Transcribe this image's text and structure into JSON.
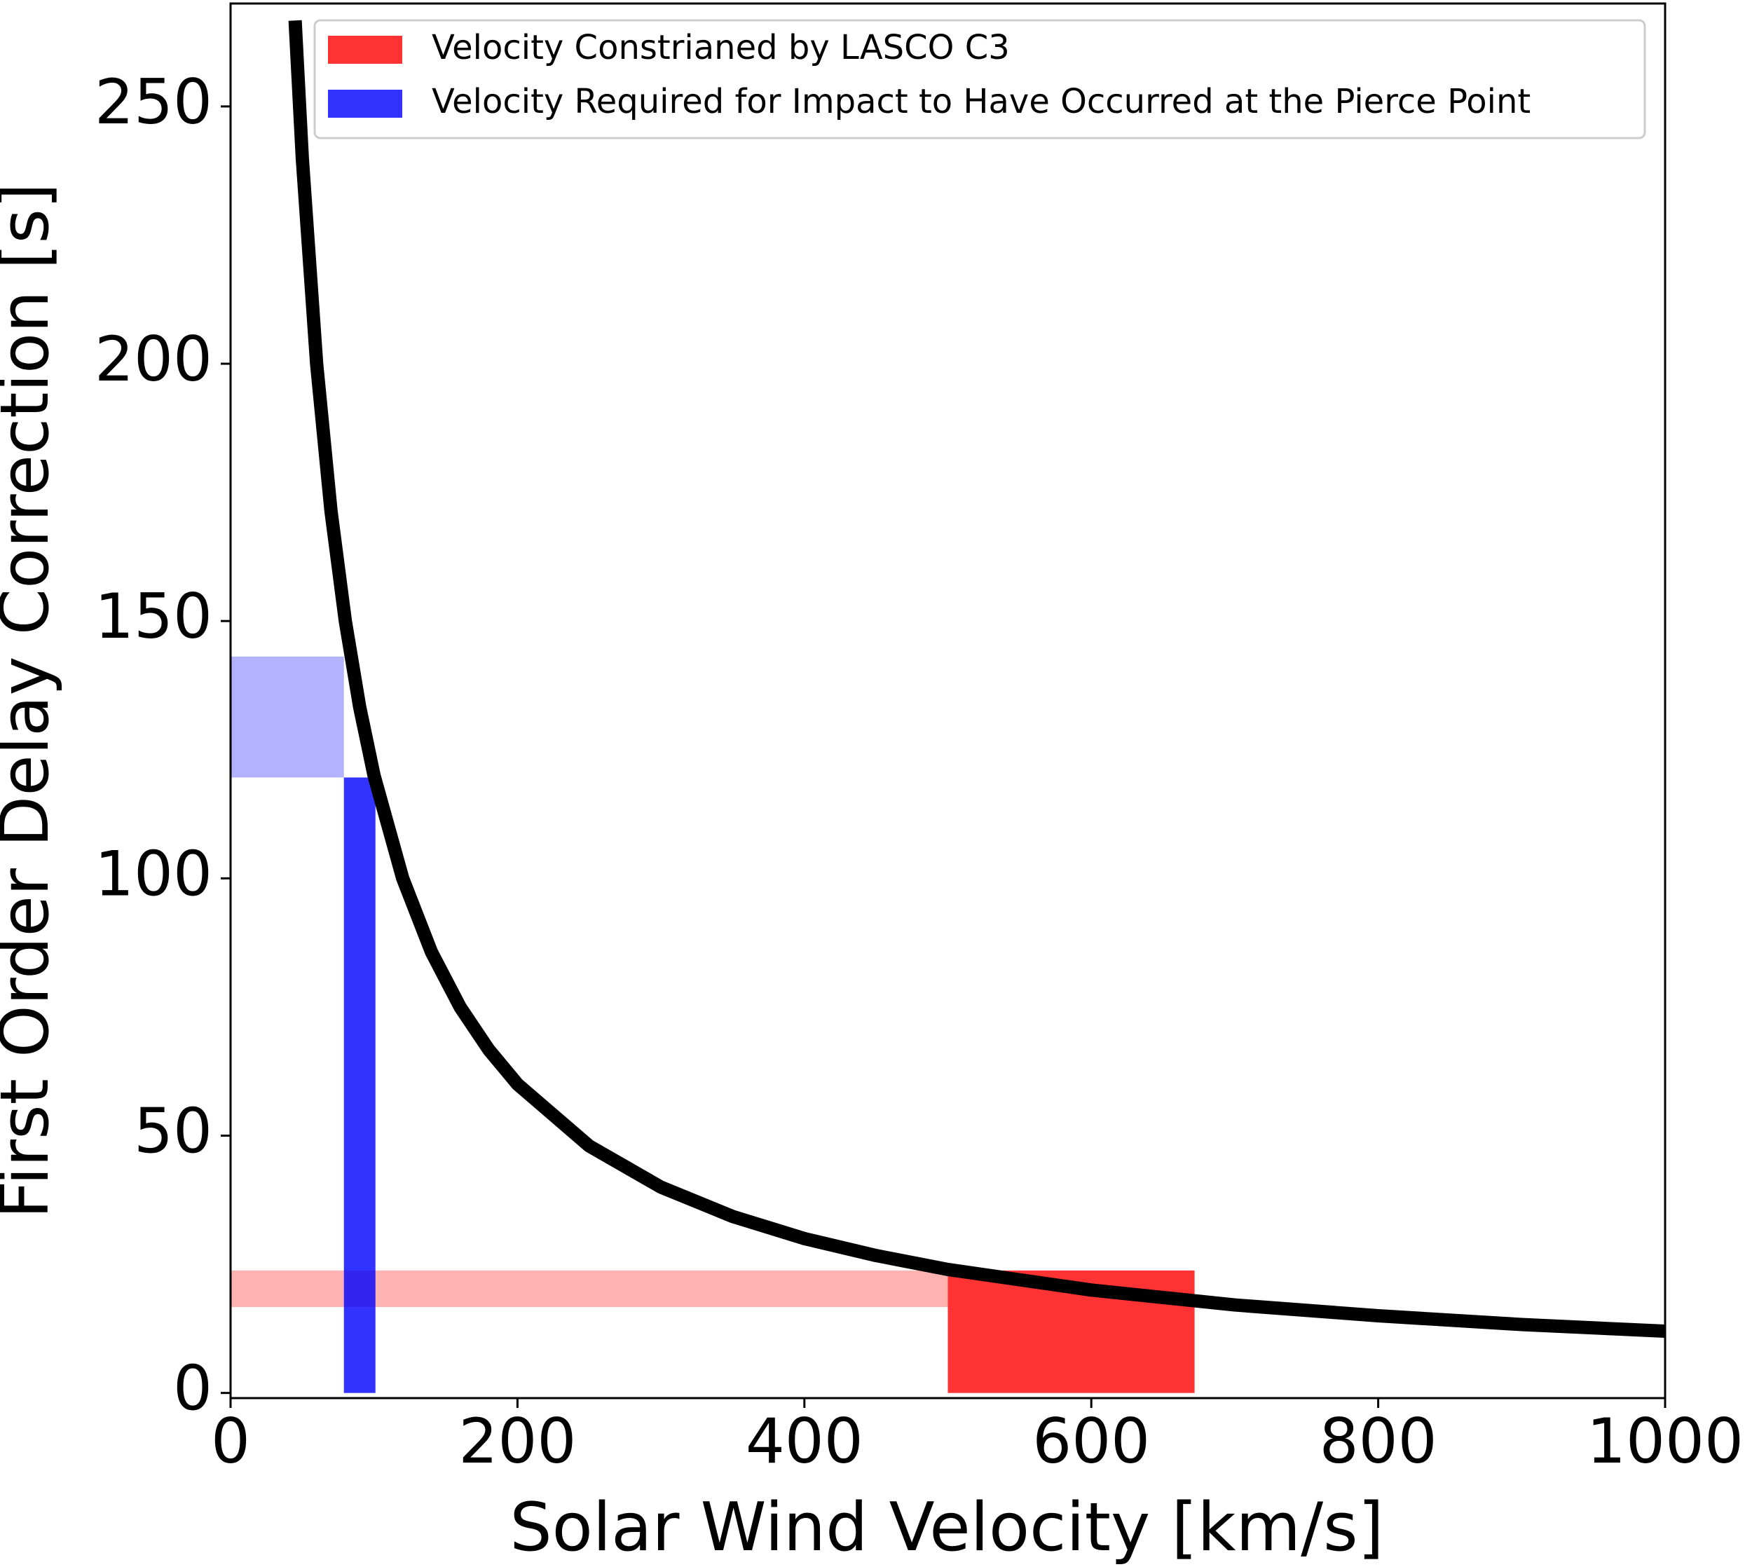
{
  "chart_data": {
    "type": "line",
    "xlabel": "Solar Wind Velocity [km/s]",
    "ylabel": "First Order Delay Correction [s]",
    "x": [
      45,
      50,
      60,
      70,
      80,
      90,
      100,
      120,
      140,
      160,
      180,
      200,
      250,
      300,
      350,
      400,
      450,
      500,
      600,
      700,
      800,
      900,
      1000
    ],
    "values": [
      266.7,
      240,
      200,
      171.4,
      150,
      133.3,
      120,
      100,
      85.7,
      75,
      66.7,
      60,
      48,
      40,
      34.3,
      30,
      26.7,
      24,
      20,
      17.1,
      15,
      13.3,
      12
    ],
    "color": "#000000",
    "regions": [
      {
        "name": "Velocity Constrianed by LASCO C3",
        "color": "#ff0000",
        "bar_x": [
          500,
          672
        ],
        "bar_y": [
          0,
          23.8
        ],
        "band_x": [
          0,
          500
        ],
        "band_y": [
          16.7,
          23.8
        ]
      },
      {
        "name": "Velocity Required for Impact to Have Occurred at the Pierce Point",
        "color": "#0000ff",
        "bar_x": [
          79,
          101
        ],
        "bar_y": [
          0,
          119.6
        ],
        "band_x": [
          0,
          79
        ],
        "band_y": [
          119.6,
          143.1
        ]
      }
    ],
    "xlim": [
      0,
      1000
    ],
    "xticks": [
      0,
      200,
      400,
      600,
      800,
      1000
    ],
    "ylim": [
      -1,
      270
    ],
    "yticks": [
      0,
      50,
      100,
      150,
      200,
      250
    ],
    "legend": "upper right"
  }
}
